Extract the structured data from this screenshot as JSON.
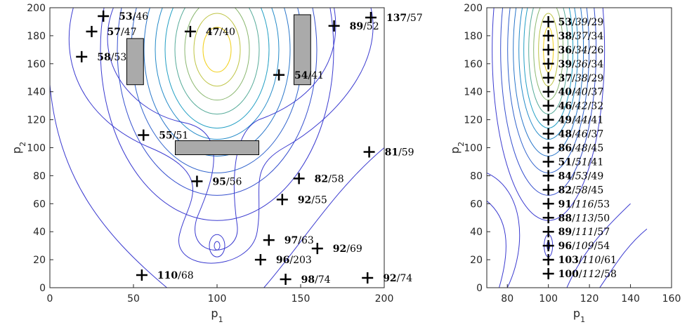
{
  "chart_data": [
    {
      "type": "scatter",
      "xlabel": "p",
      "xlabel_sub": "1",
      "ylabel": "p",
      "ylabel_sub": "2",
      "xlim": [
        0,
        200
      ],
      "ylim": [
        0,
        200
      ],
      "xticks": [
        "0",
        "50",
        "100",
        "150",
        "200"
      ],
      "yticks": [
        "0",
        "20",
        "40",
        "60",
        "80",
        "100",
        "120",
        "140",
        "160",
        "180",
        "200"
      ],
      "grid": false,
      "obstacles": [
        {
          "x0": 46,
          "x1": 56,
          "y0": 145,
          "y1": 178
        },
        {
          "x0": 146,
          "x1": 156,
          "y0": 145,
          "y1": 195
        },
        {
          "x0": 75,
          "x1": 125,
          "y0": 95,
          "y1": 105
        }
      ],
      "points": [
        {
          "x": 32,
          "y": 194,
          "bold": "53",
          "rest": "/46"
        },
        {
          "x": 25,
          "y": 183,
          "bold": "57",
          "rest": "/47"
        },
        {
          "x": 19,
          "y": 165,
          "bold": "58",
          "rest": "/53"
        },
        {
          "x": 84,
          "y": 183,
          "bold": "47",
          "rest": "/40"
        },
        {
          "x": 137,
          "y": 152,
          "bold": "54",
          "rest": "/41"
        },
        {
          "x": 170,
          "y": 187,
          "bold": "89",
          "rest": "/52"
        },
        {
          "x": 192,
          "y": 193,
          "bold": "137",
          "rest": "/57"
        },
        {
          "x": 56,
          "y": 109,
          "bold": "55",
          "rest": "/51"
        },
        {
          "x": 191,
          "y": 97,
          "bold": "81",
          "rest": "/59"
        },
        {
          "x": 88,
          "y": 76,
          "bold": "95",
          "rest": "/56"
        },
        {
          "x": 149,
          "y": 78,
          "bold": "82",
          "rest": "/58"
        },
        {
          "x": 139,
          "y": 63,
          "bold": "92",
          "rest": "/55"
        },
        {
          "x": 131,
          "y": 34,
          "bold": "97",
          "rest": "/63"
        },
        {
          "x": 160,
          "y": 28,
          "bold": "92",
          "rest": "/69"
        },
        {
          "x": 126,
          "y": 20,
          "bold": "96",
          "rest": "/203"
        },
        {
          "x": 55,
          "y": 9,
          "bold": "110",
          "rest": "/68"
        },
        {
          "x": 141,
          "y": 6,
          "bold": "98",
          "rest": "/74"
        },
        {
          "x": 190,
          "y": 7,
          "bold": "92",
          "rest": "/74"
        }
      ],
      "contour_peaks": [
        {
          "x": 100,
          "y": 170
        },
        {
          "x": 100,
          "y": 30
        }
      ]
    },
    {
      "type": "scatter",
      "xlabel": "p",
      "xlabel_sub": "1",
      "ylabel": "p",
      "ylabel_sub": "2",
      "xlim": [
        70,
        160
      ],
      "ylim": [
        0,
        200
      ],
      "xticks": [
        "80",
        "100",
        "120",
        "140",
        "160"
      ],
      "yticks": [
        "0",
        "20",
        "40",
        "60",
        "80",
        "100",
        "120",
        "140",
        "160",
        "180",
        "200"
      ],
      "grid": false,
      "points": [
        {
          "x": 100,
          "y": 190,
          "bold": "53",
          "mid": "39",
          "rest": "29"
        },
        {
          "x": 100,
          "y": 180,
          "bold": "38",
          "mid": "37",
          "rest": "34"
        },
        {
          "x": 100,
          "y": 170,
          "bold": "36",
          "mid": "34",
          "rest": "26"
        },
        {
          "x": 100,
          "y": 160,
          "bold": "39",
          "mid": "36",
          "rest": "34"
        },
        {
          "x": 100,
          "y": 150,
          "bold": "37",
          "mid": "38",
          "rest": "29"
        },
        {
          "x": 100,
          "y": 140,
          "bold": "40",
          "mid": "40",
          "rest": "37"
        },
        {
          "x": 100,
          "y": 130,
          "bold": "46",
          "mid": "42",
          "rest": "32"
        },
        {
          "x": 100,
          "y": 120,
          "bold": "49",
          "mid": "44",
          "rest": "41"
        },
        {
          "x": 100,
          "y": 110,
          "bold": "48",
          "mid": "46",
          "rest": "37"
        },
        {
          "x": 100,
          "y": 100,
          "bold": "86",
          "mid": "48",
          "rest": "45"
        },
        {
          "x": 100,
          "y": 90,
          "bold": "51",
          "mid": "51",
          "rest": "41"
        },
        {
          "x": 100,
          "y": 80,
          "bold": "84",
          "mid": "53",
          "rest": "49"
        },
        {
          "x": 100,
          "y": 70,
          "bold": "82",
          "mid": "58",
          "rest": "45"
        },
        {
          "x": 100,
          "y": 60,
          "bold": "91",
          "mid": "116",
          "rest": "53"
        },
        {
          "x": 100,
          "y": 50,
          "bold": "88",
          "mid": "113",
          "rest": "50"
        },
        {
          "x": 100,
          "y": 40,
          "bold": "89",
          "mid": "111",
          "rest": "57"
        },
        {
          "x": 100,
          "y": 30,
          "bold": "96",
          "mid": "109",
          "rest": "54"
        },
        {
          "x": 100,
          "y": 20,
          "bold": "103",
          "mid": "110",
          "rest": "61"
        },
        {
          "x": 100,
          "y": 10,
          "bold": "100",
          "mid": "112",
          "rest": "58"
        }
      ],
      "contour_peaks": [
        {
          "x": 100,
          "y": 170
        },
        {
          "x": 100,
          "y": 30
        }
      ]
    }
  ],
  "colors": {
    "contour_outer": "#3b3bd0",
    "contour_mid": "#1f9ec6",
    "contour_inner": "#f2d01a",
    "obstacle_fill": "#aaaaaa",
    "marker": "#000000"
  }
}
